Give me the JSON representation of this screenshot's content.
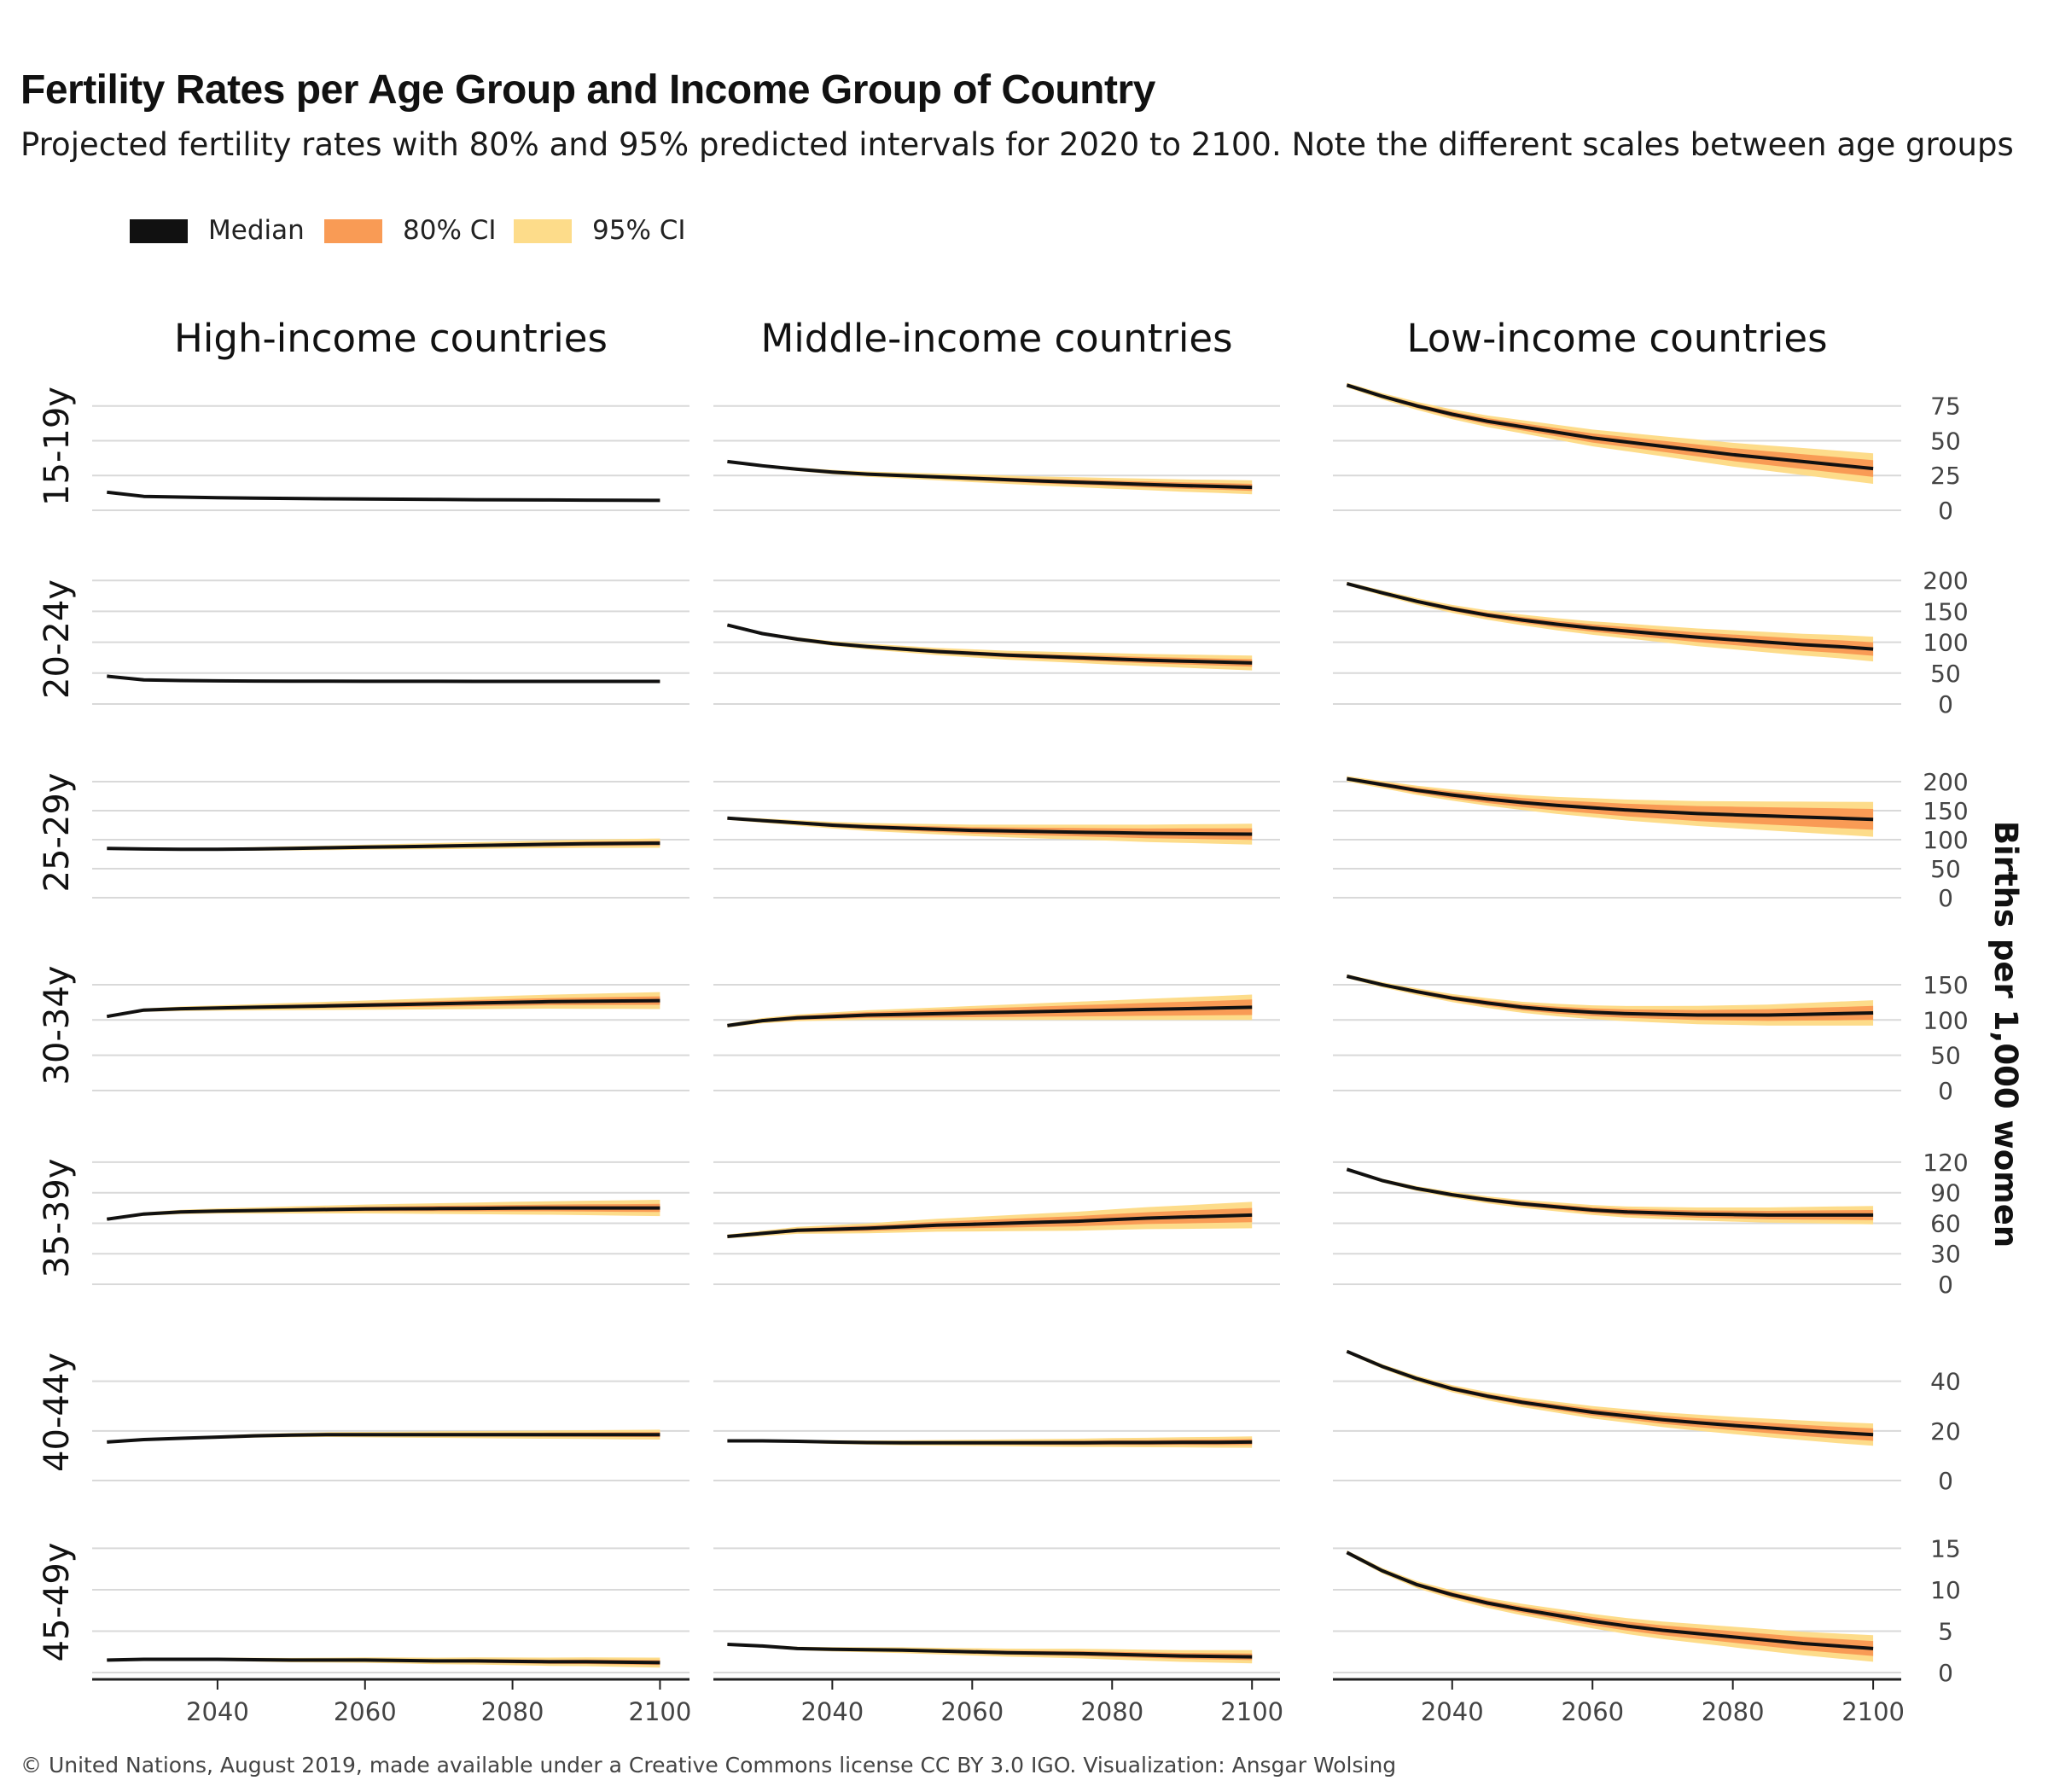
{
  "header": {
    "title": "Fertility Rates per Age Group and Income Group of Country",
    "subtitle": "Projected fertility rates with 80% and 95% predicted intervals for 2020 to 2100. Note the different scales between age groups"
  },
  "caption": "© United Nations, August 2019, made available under a Creative Commons license CC BY 3.0 IGO. Visualization: Ansgar Wolsing",
  "colors": {
    "median": "#111111",
    "ci80": "#f99b55",
    "ci95": "#fddc8a",
    "grid": "#d9d9d9",
    "axis": "#222222"
  },
  "chart_data": {
    "type": "line",
    "x": [
      2025,
      2030,
      2035,
      2040,
      2045,
      2050,
      2055,
      2060,
      2065,
      2070,
      2075,
      2080,
      2085,
      2090,
      2095,
      2100
    ],
    "x_ticks": [
      2040,
      2060,
      2080,
      2100
    ],
    "xlim": [
      2023,
      2104
    ],
    "ylabel": "Births per 1,000 women",
    "legend": {
      "position": "top-left",
      "entries": [
        "Median",
        "80% CI",
        "95% CI"
      ]
    },
    "columns": [
      "High-income countries",
      "Middle-income countries",
      "Low-income countries"
    ],
    "rows": [
      {
        "label": "15-19y",
        "ylim": [
          0,
          92
        ],
        "ticks": [
          0,
          25,
          50,
          75
        ],
        "series": [
          {
            "median": [
              13,
              10,
              9.5,
              9,
              8.8,
              8.5,
              8.3,
              8.1,
              8,
              7.8,
              7.6,
              7.5,
              7.4,
              7.3,
              7.2,
              7.1
            ],
            "w80": 0.4,
            "w95": 0.8
          },
          {
            "median": [
              35,
              32,
              29.5,
              27.5,
              26,
              25,
              24,
              23,
              22,
              21,
              20.2,
              19.4,
              18.6,
              17.8,
              17.2,
              16.5
            ],
            "w80": 2.5,
            "w95": 5
          },
          {
            "median": [
              90,
              82,
              75,
              69,
              64,
              60,
              56,
              52,
              49,
              46,
              43,
              40,
              37.5,
              35,
              32.5,
              30
            ],
            "w80": 6,
            "w95": 11
          }
        ]
      },
      {
        "label": "20-24y",
        "ylim": [
          0,
          210
        ],
        "ticks": [
          0,
          50,
          100,
          150,
          200
        ],
        "series": [
          {
            "median": [
              45,
              39,
              38,
              37.5,
              37.2,
              37,
              36.9,
              36.8,
              36.7,
              36.7,
              36.6,
              36.6,
              36.6,
              36.6,
              36.6,
              36.6
            ],
            "w80": 0.8,
            "w95": 1.5
          },
          {
            "median": [
              128,
              114,
              105,
              98,
              93,
              89,
              85,
              82,
              79,
              77,
              75,
              73,
              71,
              69.5,
              68,
              66.5
            ],
            "w80": 6,
            "w95": 12
          },
          {
            "median": [
              195,
              180,
              166,
              154,
              144,
              136,
              129,
              123,
              118,
              113,
              108,
              104,
              100,
              96,
              93,
              89
            ],
            "w80": 11,
            "w95": 20
          }
        ]
      },
      {
        "label": "25-29y",
        "ylim": [
          0,
          225
        ],
        "ticks": [
          0,
          50,
          100,
          150,
          200
        ],
        "series": [
          {
            "median": [
              85,
              84,
              83.5,
              83.5,
              84,
              85,
              86,
              87,
              88,
              89,
              90,
              91,
              92,
              93,
              93.5,
              94
            ],
            "w80": 4,
            "w95": 8
          },
          {
            "median": [
              137,
              133,
              129,
              125,
              122,
              120,
              118,
              116,
              115,
              114,
              113,
              112,
              111,
              110.5,
              110,
              109.5
            ],
            "w80": 10,
            "w95": 18
          },
          {
            "median": [
              205,
              195,
              185,
              177,
              170,
              164,
              159,
              155,
              151,
              148,
              145,
              143,
              141,
              139,
              137,
              135
            ],
            "w80": 18,
            "w95": 30
          }
        ]
      },
      {
        "label": "30-34y",
        "ylim": [
          0,
          185
        ],
        "ticks": [
          0,
          50,
          100,
          150
        ],
        "series": [
          {
            "median": [
              105,
              114,
              116,
              117,
              118,
              119,
              120,
              121,
              122,
              123,
              124,
              125,
              126,
              126.5,
              127,
              127.5
            ],
            "w80": 6,
            "w95": 12
          },
          {
            "median": [
              92,
              99,
              103,
              105,
              107,
              108,
              109,
              110,
              111,
              112,
              113,
              114,
              115,
              116,
              117,
              118
            ],
            "w80": 11,
            "w95": 18
          },
          {
            "median": [
              162,
              150,
              140,
              131,
              124,
              118,
              114,
              111,
              109,
              108,
              107,
              107,
              107,
              108,
              109,
              110
            ],
            "w80": 10,
            "w95": 18
          }
        ]
      },
      {
        "label": "35-39y",
        "ylim": [
          0,
          130
        ],
        "ticks": [
          0,
          30,
          60,
          90,
          120
        ],
        "series": [
          {
            "median": [
              64,
              69,
              71,
              72,
              72.5,
              73,
              73.5,
              74,
              74.2,
              74.4,
              74.6,
              74.8,
              75,
              75,
              75,
              75
            ],
            "w80": 4,
            "w95": 8
          },
          {
            "median": [
              47,
              50,
              53,
              54,
              55,
              56.5,
              58,
              59,
              60,
              61,
              62,
              63.5,
              65,
              66,
              67,
              68
            ],
            "w80": 7,
            "w95": 13
          },
          {
            "median": [
              113,
              102,
              94,
              88,
              83,
              79,
              76,
              73,
              71,
              70,
              69,
              68.5,
              68,
              68,
              68,
              68
            ],
            "w80": 5,
            "w95": 9
          }
        ]
      },
      {
        "label": "40-44y",
        "ylim": [
          0,
          55
        ],
        "ticks": [
          0,
          20,
          40
        ],
        "series": [
          {
            "median": [
              15.5,
              16.5,
              17,
              17.5,
              18,
              18.3,
              18.5,
              18.5,
              18.5,
              18.5,
              18.5,
              18.5,
              18.5,
              18.5,
              18.5,
              18.5
            ],
            "w80": 1,
            "w95": 2
          },
          {
            "median": [
              16,
              16,
              15.8,
              15.5,
              15.3,
              15.2,
              15.2,
              15.2,
              15.2,
              15.2,
              15.2,
              15.3,
              15.3,
              15.4,
              15.4,
              15.5
            ],
            "w80": 1.2,
            "w95": 2.3
          },
          {
            "median": [
              52,
              46,
              41,
              37,
              34,
              31.5,
              29.5,
              27.5,
              26,
              24.5,
              23.3,
              22.2,
              21.2,
              20.2,
              19.3,
              18.5
            ],
            "w80": 2.5,
            "w95": 4.5
          }
        ]
      },
      {
        "label": "45-49y",
        "ylim": [
          0,
          17
        ],
        "ticks": [
          0,
          5,
          10,
          15
        ],
        "series": [
          {
            "median": [
              1.5,
              1.6,
              1.6,
              1.6,
              1.55,
              1.5,
              1.5,
              1.5,
              1.45,
              1.4,
              1.4,
              1.35,
              1.3,
              1.3,
              1.25,
              1.2
            ],
            "w80": 0.3,
            "w95": 0.6
          },
          {
            "median": [
              3.4,
              3.2,
              2.9,
              2.8,
              2.75,
              2.7,
              2.6,
              2.5,
              2.4,
              2.35,
              2.3,
              2.2,
              2.1,
              2.0,
              1.95,
              1.9
            ],
            "w80": 0.4,
            "w95": 0.8
          },
          {
            "median": [
              14.5,
              12.3,
              10.6,
              9.4,
              8.4,
              7.6,
              6.9,
              6.2,
              5.6,
              5.1,
              4.7,
              4.3,
              3.9,
              3.5,
              3.2,
              2.9
            ],
            "w80": 0.9,
            "w95": 1.6
          }
        ]
      }
    ]
  }
}
